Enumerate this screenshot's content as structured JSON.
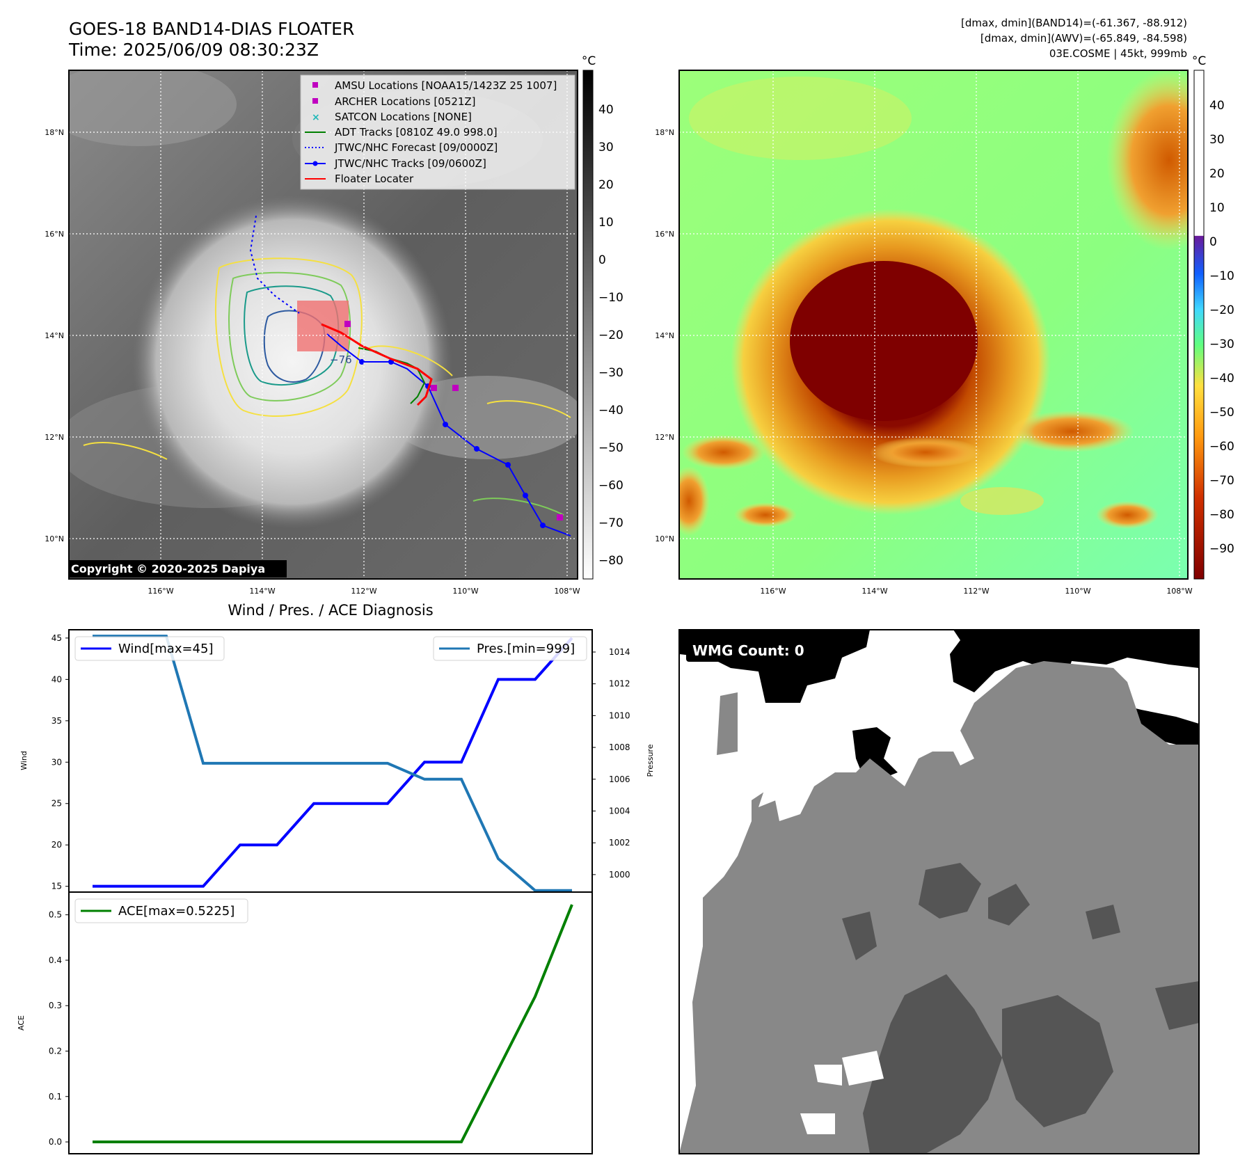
{
  "header": {
    "title_line1": "GOES-18 BAND14-DIAS FLOATER",
    "title_line2": "Time: 2025/06/09 08:30:23Z",
    "stats_line1": "[dmax, dmin](BAND14)=(-61.367, -88.912)",
    "stats_line2": "[dmax, dmin](AWV)=(-65.849, -84.598)",
    "stats_line3": "03E.COSME | 45kt, 999mb"
  },
  "ir_panel": {
    "colorbar_unit": "°C",
    "colorbar_ticks": [
      "40",
      "30",
      "20",
      "10",
      "0",
      "−10",
      "−20",
      "−30",
      "−40",
      "−50",
      "−60",
      "−70",
      "−80"
    ],
    "lat_labels": [
      "18°N",
      "16°N",
      "14°N",
      "12°N",
      "10°N"
    ],
    "lon_labels": [
      "116°W",
      "114°W",
      "112°W",
      "110°W",
      "108°W"
    ],
    "contour_label": "−76",
    "copyright": "Copyright © 2020-2025 Dapiya",
    "legend": [
      {
        "label": "AMSU Locations [NOAA15/1423Z 25 1007]",
        "color": "#c000c0",
        "marker": "square"
      },
      {
        "label": "ARCHER Locations [0521Z]",
        "color": "#c000c0",
        "marker": "square"
      },
      {
        "label": "SATCON Locations [NONE]",
        "color": "#20b8b8",
        "marker": "x"
      },
      {
        "label": "ADT Tracks [0810Z 49.0 998.0]",
        "color": "#008000",
        "marker": "line"
      },
      {
        "label": "JTWC/NHC Forecast [09/0000Z]",
        "color": "#0000ff",
        "marker": "dotted"
      },
      {
        "label": "JTWC/NHC Tracks [09/0600Z]",
        "color": "#0000ff",
        "marker": "line-dot"
      },
      {
        "label": "Floater Locater",
        "color": "#ff0000",
        "marker": "line"
      }
    ]
  },
  "awv_panel": {
    "colorbar_unit": "°C",
    "colorbar_ticks": [
      "40",
      "30",
      "20",
      "10",
      "0",
      "−10",
      "−20",
      "−30",
      "−40",
      "−50",
      "−60",
      "−70",
      "−80",
      "−90"
    ],
    "lat_labels": [
      "18°N",
      "16°N",
      "14°N",
      "12°N",
      "10°N"
    ],
    "lon_labels": [
      "116°W",
      "114°W",
      "112°W",
      "110°W",
      "108°W"
    ]
  },
  "wmg_panel": {
    "label": "WMG Count: 0"
  },
  "diag_title": "Wind / Pres. / ACE Diagnosis",
  "chart_data": [
    {
      "type": "line",
      "name": "wind-pressure",
      "series": [
        {
          "name": "Wind[max=45]",
          "values": [
            15,
            15,
            15,
            15,
            20,
            20,
            25,
            25,
            25,
            30,
            30,
            40,
            40,
            45
          ],
          "color": "#0000ff"
        },
        {
          "name": "Pres.[min=999]",
          "values": [
            1015,
            1015,
            1015,
            1007,
            1007,
            1007,
            1007,
            1007,
            1007,
            1006,
            1006,
            1001,
            999,
            999
          ],
          "color": "#1f77b4"
        }
      ],
      "ylabel": "Wind",
      "ylabel_right": "Pressure",
      "ylim": [
        14.3,
        46
      ],
      "ylim_right": [
        998.9,
        1015.4
      ],
      "yticks": [
        15,
        20,
        25,
        30,
        35,
        40,
        45
      ],
      "yticks_right": [
        1000,
        1002,
        1004,
        1006,
        1008,
        1010,
        1012,
        1014
      ]
    },
    {
      "type": "line",
      "name": "ace",
      "series": [
        {
          "name": "ACE[max=0.5225]",
          "values": [
            0,
            0,
            0,
            0,
            0,
            0,
            0,
            0,
            0,
            0,
            0,
            0.16,
            0.32,
            0.5225
          ],
          "color": "#008000"
        }
      ],
      "ylabel": "ACE",
      "ylim": [
        -0.026,
        0.55
      ],
      "yticks": [
        "0.0",
        "0.1",
        "0.2",
        "0.3",
        "0.4",
        "0.5"
      ]
    }
  ]
}
